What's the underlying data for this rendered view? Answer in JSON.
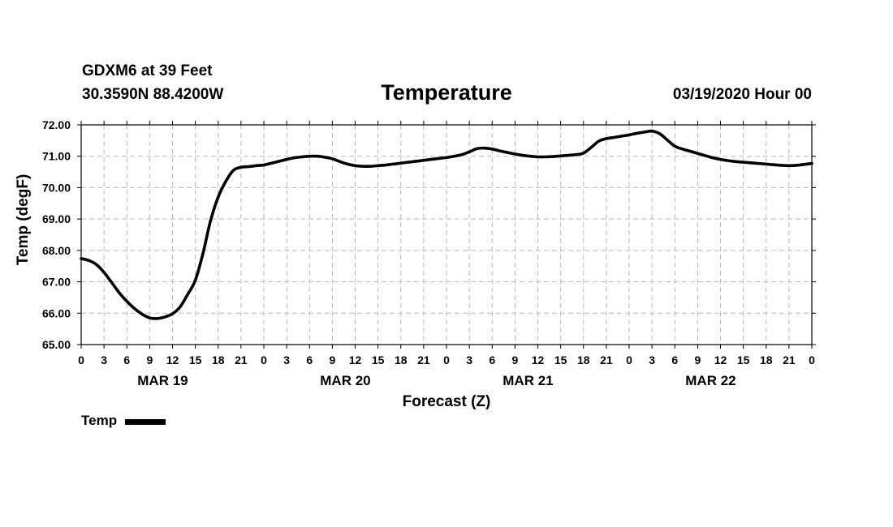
{
  "header": {
    "station": "GDXM6 at 39 Feet",
    "coords": "30.3590N 88.4200W",
    "title": "Temperature",
    "run_time": "03/19/2020 Hour 00"
  },
  "legend": {
    "label": "Temp"
  },
  "chart_data": {
    "type": "line",
    "title": "Temperature",
    "xlabel": "Forecast (Z)",
    "ylabel": "Temp (degF)",
    "ylim": [
      65.0,
      72.0
    ],
    "yticks": [
      "65.00",
      "66.00",
      "67.00",
      "68.00",
      "69.00",
      "70.00",
      "71.00",
      "72.00"
    ],
    "xlim": [
      0,
      96
    ],
    "xtick_step_hours": 3,
    "xticks": [
      "0",
      "3",
      "6",
      "9",
      "12",
      "15",
      "18",
      "21",
      "0",
      "3",
      "6",
      "9",
      "12",
      "15",
      "18",
      "21",
      "0",
      "3",
      "6",
      "9",
      "12",
      "15",
      "18",
      "21",
      "0",
      "3",
      "6",
      "9",
      "12",
      "15",
      "18",
      "21",
      "0"
    ],
    "day_labels": [
      {
        "label": "MAR 19",
        "hour": 10.5
      },
      {
        "label": "MAR 20",
        "hour": 34.5
      },
      {
        "label": "MAR 21",
        "hour": 58.5
      },
      {
        "label": "MAR 22",
        "hour": 82.5
      }
    ],
    "grid": true,
    "series": [
      {
        "name": "Temp",
        "x": [
          0,
          1,
          2,
          3,
          4,
          5,
          6,
          7,
          8,
          9,
          10,
          11,
          12,
          13,
          14,
          15,
          16,
          17,
          18,
          19,
          20,
          21,
          22,
          23,
          24,
          25,
          26,
          27,
          28,
          29,
          30,
          31,
          32,
          33,
          34,
          35,
          36,
          37,
          38,
          39,
          40,
          41,
          42,
          43,
          44,
          45,
          46,
          47,
          48,
          49,
          50,
          51,
          52,
          53,
          54,
          55,
          56,
          57,
          58,
          59,
          60,
          61,
          62,
          63,
          64,
          65,
          66,
          67,
          68,
          69,
          70,
          71,
          72,
          73,
          74,
          75,
          76,
          77,
          78,
          79,
          80,
          81,
          82,
          83,
          84,
          85,
          86,
          87,
          88,
          89,
          90,
          91,
          92,
          93,
          94,
          95,
          96
        ],
        "values": [
          67.74,
          67.68,
          67.55,
          67.3,
          66.98,
          66.65,
          66.38,
          66.15,
          65.97,
          65.85,
          65.83,
          65.88,
          65.98,
          66.2,
          66.6,
          67.05,
          67.9,
          68.95,
          69.7,
          70.2,
          70.55,
          70.65,
          70.67,
          70.7,
          70.72,
          70.78,
          70.84,
          70.9,
          70.95,
          70.98,
          71.0,
          71.0,
          70.97,
          70.92,
          70.83,
          70.75,
          70.7,
          70.68,
          70.68,
          70.7,
          70.72,
          70.75,
          70.78,
          70.81,
          70.84,
          70.87,
          70.9,
          70.93,
          70.96,
          71.0,
          71.05,
          71.14,
          71.24,
          71.26,
          71.23,
          71.17,
          71.12,
          71.07,
          71.03,
          71.0,
          70.98,
          70.98,
          70.99,
          71.01,
          71.03,
          71.05,
          71.1,
          71.28,
          71.48,
          71.56,
          71.6,
          71.64,
          71.68,
          71.73,
          71.77,
          71.8,
          71.72,
          71.52,
          71.32,
          71.23,
          71.16,
          71.09,
          71.02,
          70.95,
          70.9,
          70.86,
          70.83,
          70.81,
          70.79,
          70.77,
          70.75,
          70.73,
          70.71,
          70.7,
          70.71,
          70.74,
          70.77
        ]
      }
    ]
  }
}
